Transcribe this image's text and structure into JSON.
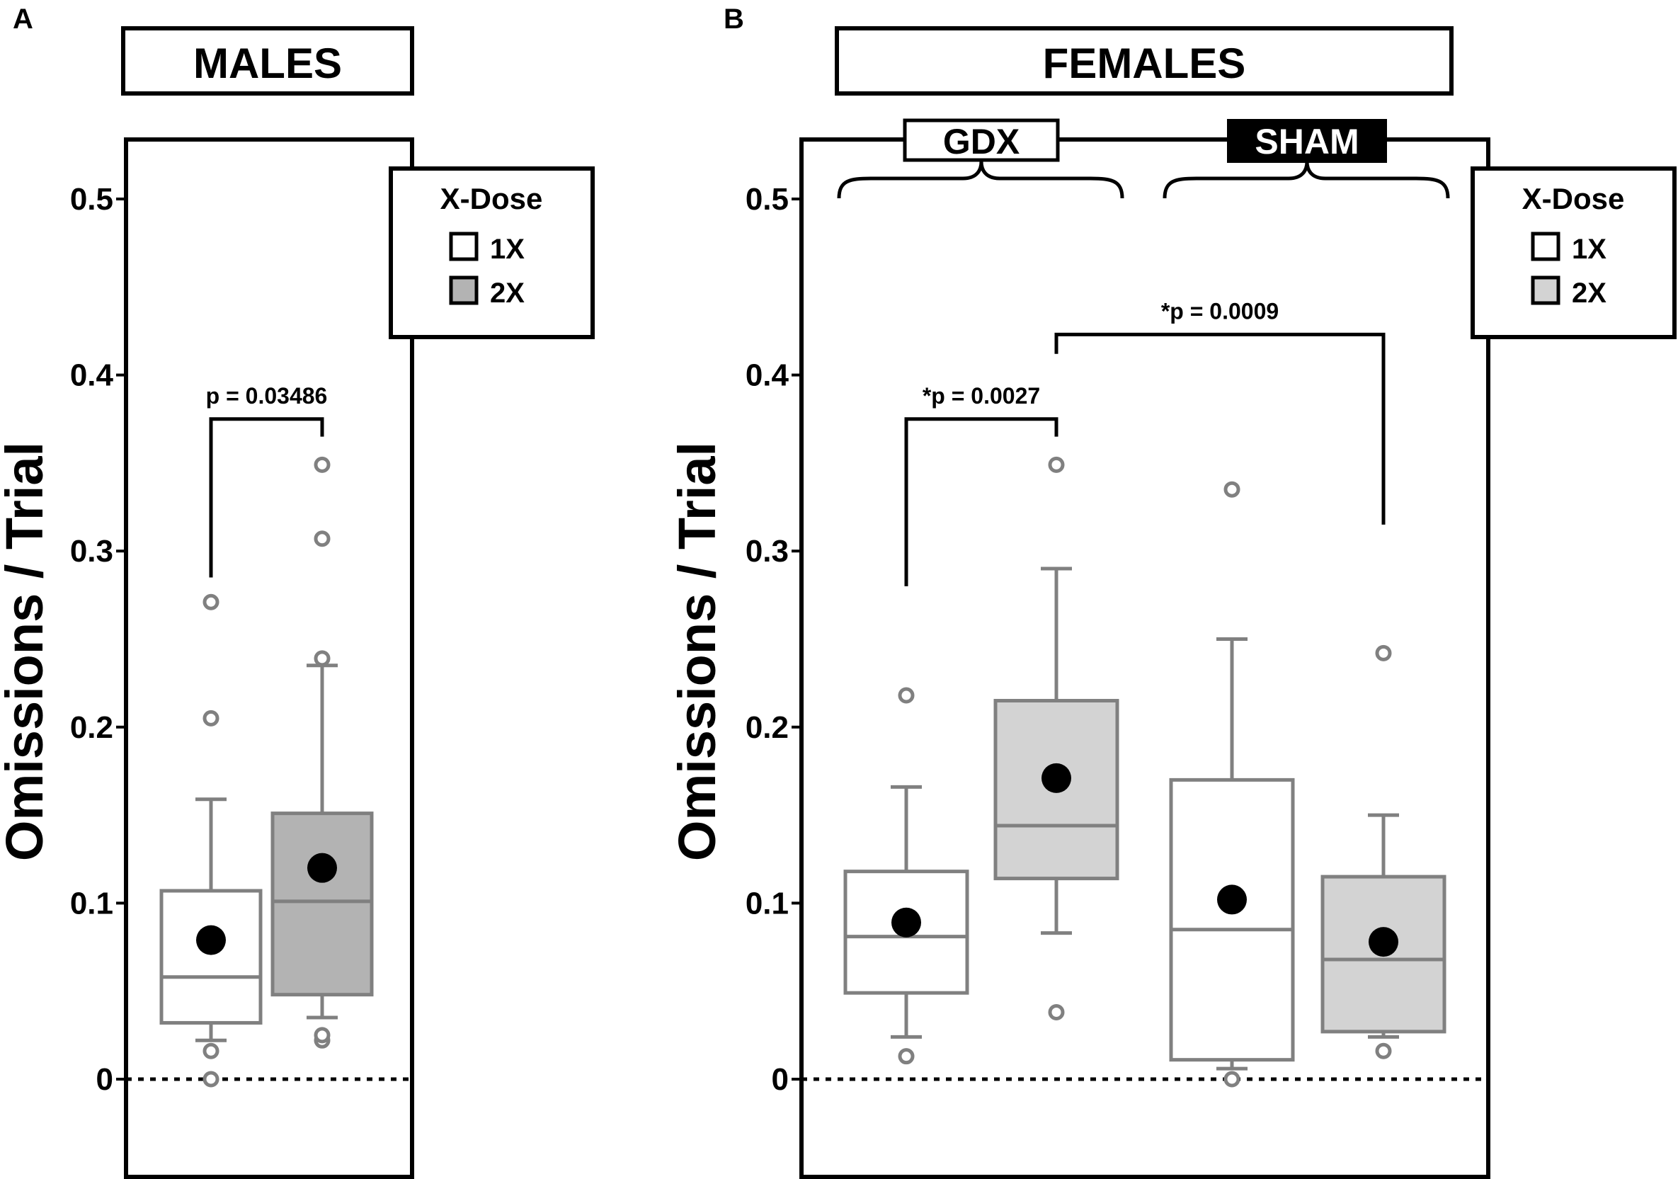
{
  "chart_data": [
    {
      "type": "box",
      "panel_letter": "A",
      "title": "MALES",
      "ylabel": "Omissions / Trial",
      "ylim": [
        -0.05,
        0.55
      ],
      "yticks": [
        0,
        0.1,
        0.2,
        0.3,
        0.4,
        0.5
      ],
      "ytick_labels": [
        "0",
        "0.1",
        "0.2",
        "0.3",
        "0.4",
        "0.5"
      ],
      "reference_line": 0,
      "legend": {
        "title": "X-Dose",
        "items": [
          {
            "label": "1X",
            "color": "#ffffff"
          },
          {
            "label": "2X",
            "color": "#b3b3b3"
          }
        ]
      },
      "series": [
        {
          "name": "1X",
          "fill": "#ffffff",
          "q1": 0.032,
          "median": 0.058,
          "q3": 0.107,
          "whisker_low": 0.022,
          "whisker_high": 0.159,
          "mean": 0.079,
          "outliers": [
            0.0,
            0.016,
            0.205,
            0.271
          ]
        },
        {
          "name": "2X",
          "fill": "#b3b3b3",
          "q1": 0.048,
          "median": 0.101,
          "q3": 0.151,
          "whisker_low": 0.035,
          "whisker_high": 0.235,
          "mean": 0.12,
          "outliers": [
            0.022,
            0.025,
            0.239,
            0.307,
            0.349
          ]
        }
      ],
      "comparisons": [
        {
          "text": "p = 0.03486",
          "from": 0,
          "to": 1,
          "height": 0.375,
          "left_drop": 0.285,
          "right_drop": 0.365
        }
      ]
    },
    {
      "type": "box",
      "panel_letter": "B",
      "title": "FEMALES",
      "ylabel": "Omissions / Trial",
      "ylim": [
        -0.05,
        0.55
      ],
      "yticks": [
        0,
        0.1,
        0.2,
        0.3,
        0.4,
        0.5
      ],
      "ytick_labels": [
        "0",
        "0.1",
        "0.2",
        "0.3",
        "0.4",
        "0.5"
      ],
      "reference_line": 0,
      "groups": [
        {
          "label": "GDX",
          "style": "outlined",
          "from": 0,
          "to": 1
        },
        {
          "label": "SHAM",
          "style": "filled",
          "from": 2,
          "to": 3
        }
      ],
      "legend": {
        "title": "X-Dose",
        "items": [
          {
            "label": "1X",
            "color": "#ffffff"
          },
          {
            "label": "2X",
            "color": "#d3d3d3"
          }
        ]
      },
      "series": [
        {
          "name": "GDX 1X",
          "fill": "#ffffff",
          "q1": 0.049,
          "median": 0.081,
          "q3": 0.118,
          "whisker_low": 0.024,
          "whisker_high": 0.166,
          "mean": 0.089,
          "outliers": [
            0.013,
            0.218
          ]
        },
        {
          "name": "GDX 2X",
          "fill": "#d3d3d3",
          "q1": 0.114,
          "median": 0.144,
          "q3": 0.215,
          "whisker_low": 0.083,
          "whisker_high": 0.29,
          "mean": 0.171,
          "outliers": [
            0.038,
            0.349
          ]
        },
        {
          "name": "SHAM 1X",
          "fill": "#ffffff",
          "q1": 0.011,
          "median": 0.085,
          "q3": 0.17,
          "whisker_low": 0.006,
          "whisker_high": 0.25,
          "mean": 0.102,
          "outliers": [
            0.0,
            0.335
          ]
        },
        {
          "name": "SHAM 2X",
          "fill": "#d3d3d3",
          "q1": 0.027,
          "median": 0.068,
          "q3": 0.115,
          "whisker_low": 0.024,
          "whisker_high": 0.15,
          "mean": 0.078,
          "outliers": [
            0.016,
            0.242
          ]
        }
      ],
      "comparisons": [
        {
          "text": "*p = 0.0027",
          "from": 0,
          "to": 1,
          "height": 0.375,
          "left_drop": 0.28,
          "right_drop": 0.365
        },
        {
          "text": "*p = 0.0009",
          "from": 1,
          "to": 3,
          "height": 0.423,
          "left_drop": 0.412,
          "right_drop": 0.315
        }
      ]
    }
  ]
}
